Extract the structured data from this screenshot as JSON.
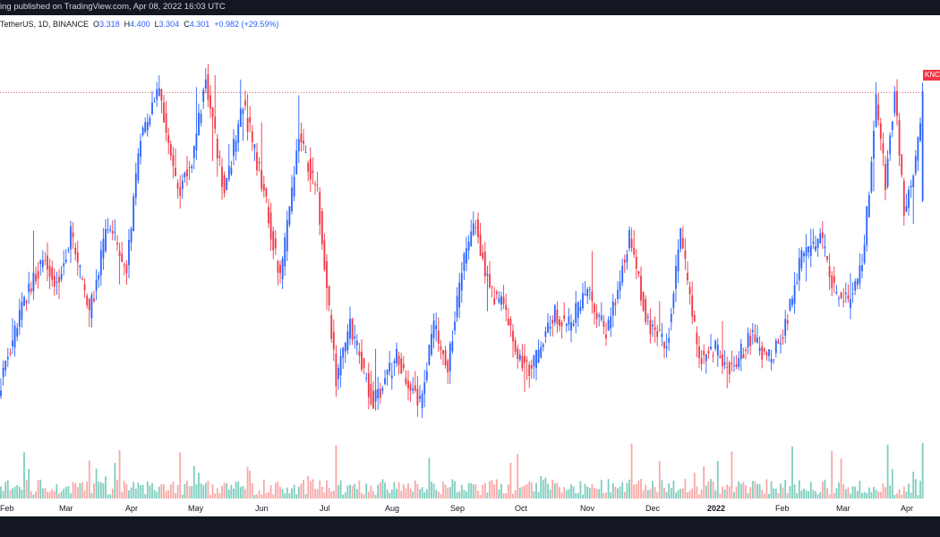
{
  "header": {
    "publish_text": "ing published on TradingView.com, Apr 08, 2022 16:03 UTC"
  },
  "legend": {
    "symbol": "TetherUS, 1D, BINANCE",
    "open_label": "O",
    "open": "3.318",
    "high_label": "H",
    "high": "4.400",
    "low_label": "L",
    "low": "3.304",
    "close_label": "C",
    "close": "4.301",
    "change": "+0.982 (+29.59%)"
  },
  "price_tag": "KNC",
  "colors": {
    "up": "#2962ff",
    "down": "#f23645",
    "vol_up": "#7fcdbe",
    "vol_down": "#f7a9a7",
    "bars": "#131722"
  },
  "chart_data": {
    "type": "candlestick",
    "x_axis_labels": [
      "Feb",
      "Mar",
      "Apr",
      "May",
      "Jun",
      "Jul",
      "Aug",
      "Sep",
      "Oct",
      "Nov",
      "Dec",
      "2022",
      "Feb",
      "Mar",
      "Apr"
    ],
    "last_price": 4.301,
    "anchors": [
      [
        0,
        1.7
      ],
      [
        10,
        2.4
      ],
      [
        18,
        2.8
      ],
      [
        24,
        2.6
      ],
      [
        30,
        3.0
      ],
      [
        38,
        2.3
      ],
      [
        46,
        3.1
      ],
      [
        54,
        2.7
      ],
      [
        60,
        3.9
      ],
      [
        68,
        4.3
      ],
      [
        76,
        3.4
      ],
      [
        82,
        3.7
      ],
      [
        88,
        4.4
      ],
      [
        96,
        3.4
      ],
      [
        104,
        4.2
      ],
      [
        112,
        3.5
      ],
      [
        120,
        2.6
      ],
      [
        128,
        3.9
      ],
      [
        136,
        3.4
      ],
      [
        144,
        1.7
      ],
      [
        150,
        2.2
      ],
      [
        160,
        1.5
      ],
      [
        170,
        1.9
      ],
      [
        180,
        1.5
      ],
      [
        186,
        2.2
      ],
      [
        192,
        1.8
      ],
      [
        198,
        2.7
      ],
      [
        204,
        3.1
      ],
      [
        210,
        2.5
      ],
      [
        216,
        2.4
      ],
      [
        222,
        1.9
      ],
      [
        228,
        1.8
      ],
      [
        238,
        2.3
      ],
      [
        244,
        2.2
      ],
      [
        252,
        2.5
      ],
      [
        260,
        2.1
      ],
      [
        270,
        3.0
      ],
      [
        278,
        2.2
      ],
      [
        286,
        2.0
      ],
      [
        292,
        3.0
      ],
      [
        300,
        1.9
      ],
      [
        306,
        2.0
      ],
      [
        314,
        1.8
      ],
      [
        322,
        2.1
      ],
      [
        330,
        1.9
      ],
      [
        336,
        2.1
      ],
      [
        344,
        2.8
      ],
      [
        352,
        3.0
      ],
      [
        358,
        2.5
      ],
      [
        364,
        2.4
      ],
      [
        370,
        2.7
      ],
      [
        376,
        4.2
      ],
      [
        380,
        3.5
      ],
      [
        384,
        4.3
      ],
      [
        388,
        3.2
      ],
      [
        393,
        3.7
      ],
      [
        396,
        4.3
      ]
    ]
  }
}
